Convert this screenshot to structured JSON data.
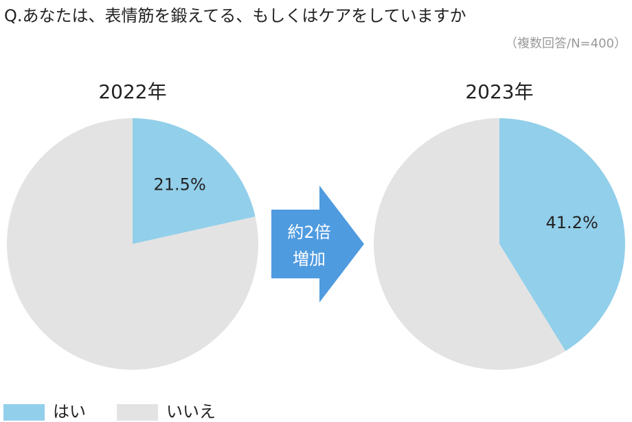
{
  "title": "Q.あなたは、表情筋を鍛えてる、もしくはケアをしていますか",
  "subtitle": "（複数回答/N=400）",
  "annotation": [
    "約2倍",
    "増加"
  ],
  "chart_data": [
    {
      "type": "pie",
      "title": "2022年",
      "categories": [
        "はい",
        "いいえ"
      ],
      "values": [
        21.5,
        78.5
      ],
      "value_labels": [
        "21.5%",
        null
      ],
      "colors": [
        "#92cfea",
        "#e3e3e3"
      ]
    },
    {
      "type": "pie",
      "title": "2023年",
      "categories": [
        "はい",
        "いいえ"
      ],
      "values": [
        41.2,
        58.8
      ],
      "value_labels": [
        "41.2%",
        null
      ],
      "colors": [
        "#92cfea",
        "#e3e3e3"
      ]
    }
  ]
}
